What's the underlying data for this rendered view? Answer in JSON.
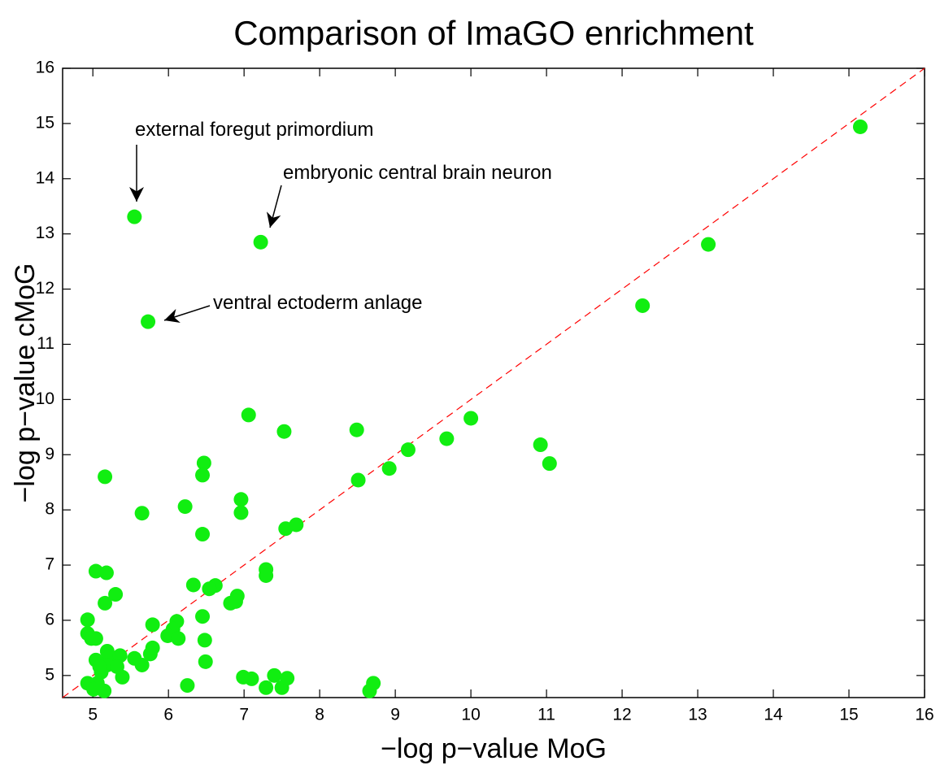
{
  "chart_data": {
    "type": "scatter",
    "title": "Comparison of ImaGO enrichment",
    "x_label": "−log p−value MoG",
    "y_label": "−log p−value cMoG",
    "color": "#11ee11",
    "identity_line": true,
    "identity_line_color": "#ff0000",
    "xlim": [
      4.6,
      16
    ],
    "ylim": [
      4.6,
      16
    ],
    "xticks": [
      5,
      6,
      7,
      8,
      9,
      10,
      11,
      12,
      13,
      14,
      15,
      16
    ],
    "yticks": [
      5,
      6,
      7,
      8,
      9,
      10,
      11,
      12,
      13,
      14,
      15,
      16
    ],
    "annotations": [
      "external foregut primordium",
      "embryonic central brain neuron",
      "ventral ectoderm anlage"
    ],
    "x": [
      15.15,
      13.14,
      12.27,
      10.92,
      11.04,
      10.0,
      9.68,
      9.17,
      8.92,
      5.55,
      7.22,
      5.73,
      7.06,
      7.53,
      8.49,
      8.51,
      6.47,
      6.45,
      5.16,
      6.96,
      6.96,
      6.22,
      5.65,
      6.45,
      7.55,
      7.69,
      7.29,
      7.29,
      5.04,
      5.18,
      5.3,
      5.16,
      6.33,
      6.62,
      6.54,
      6.82,
      6.91,
      6.89,
      4.93,
      4.93,
      4.98,
      5.79,
      6.11,
      6.06,
      5.99,
      6.13,
      6.45,
      6.48,
      6.49,
      6.25,
      6.99,
      7.1,
      7.29,
      7.4,
      7.5,
      7.57,
      8.66,
      8.71,
      5.04,
      5.19,
      5.22,
      5.36,
      5.55,
      5.65,
      5.76,
      5.79,
      5.39,
      5.19,
      5.04,
      5.11,
      5.06,
      5.15,
      4.93,
      5.01,
      5.09,
      5.32
    ],
    "values": [
      14.94,
      12.81,
      11.7,
      9.18,
      8.84,
      9.66,
      9.29,
      9.09,
      8.75,
      13.31,
      12.85,
      11.41,
      9.72,
      9.42,
      9.45,
      8.54,
      8.85,
      8.63,
      8.6,
      8.19,
      7.95,
      8.06,
      7.94,
      7.56,
      7.66,
      7.73,
      6.92,
      6.81,
      6.89,
      6.86,
      6.47,
      6.31,
      6.64,
      6.63,
      6.57,
      6.31,
      6.44,
      6.34,
      6.01,
      5.76,
      5.67,
      5.92,
      5.98,
      5.84,
      5.72,
      5.67,
      6.07,
      5.64,
      5.25,
      4.82,
      4.97,
      4.94,
      4.78,
      5.0,
      4.78,
      4.95,
      4.72,
      4.86,
      5.67,
      5.44,
      5.34,
      5.36,
      5.31,
      5.19,
      5.39,
      5.5,
      4.97,
      5.19,
      5.28,
      5.06,
      4.86,
      4.72,
      4.86,
      4.75,
      5.16,
      5.16
    ]
  }
}
